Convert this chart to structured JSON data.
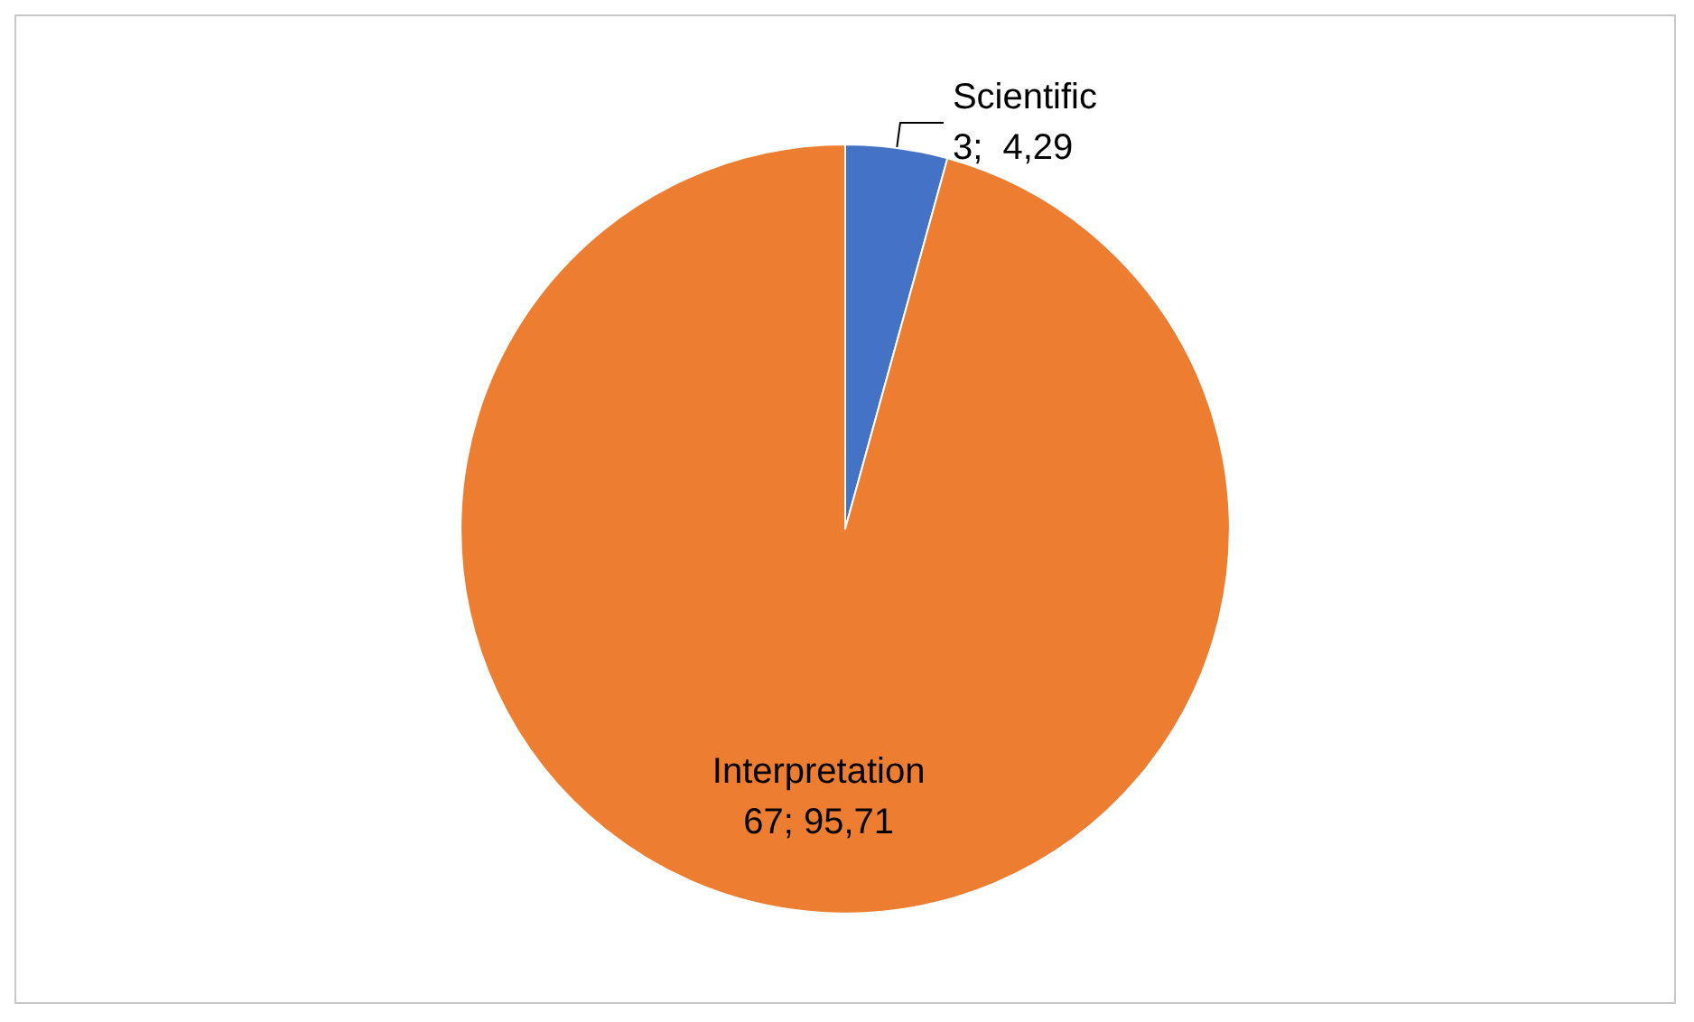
{
  "chart_data": {
    "type": "pie",
    "categories": [
      "Scientific",
      "Interpretation"
    ],
    "values": [
      3,
      67
    ],
    "colors": [
      "#4472c4",
      "#ed7d31"
    ],
    "value_labels": [
      "3;  4,29",
      "67; 95,71"
    ],
    "legend": false
  }
}
